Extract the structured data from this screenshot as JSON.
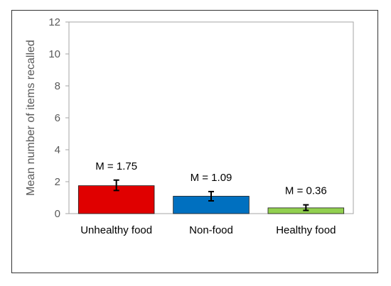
{
  "chart_data": {
    "type": "bar",
    "title": "",
    "xlabel": "",
    "ylabel": "Mean number of items recalled",
    "ylim": [
      0,
      12
    ],
    "yticks": [
      0,
      2,
      4,
      6,
      8,
      10,
      12
    ],
    "grid": false,
    "legend": "none",
    "categories": [
      "Unhealthy food",
      "Non-food",
      "Healthy food"
    ],
    "values": [
      1.75,
      1.09,
      0.36
    ],
    "error_low": [
      1.45,
      0.8,
      0.2
    ],
    "error_high": [
      2.1,
      1.38,
      0.55
    ],
    "data_labels": [
      "M = 1.75",
      "M = 1.09",
      "M = 0.36"
    ],
    "colors": [
      "#e00000",
      "#0070c0",
      "#92d050"
    ]
  }
}
